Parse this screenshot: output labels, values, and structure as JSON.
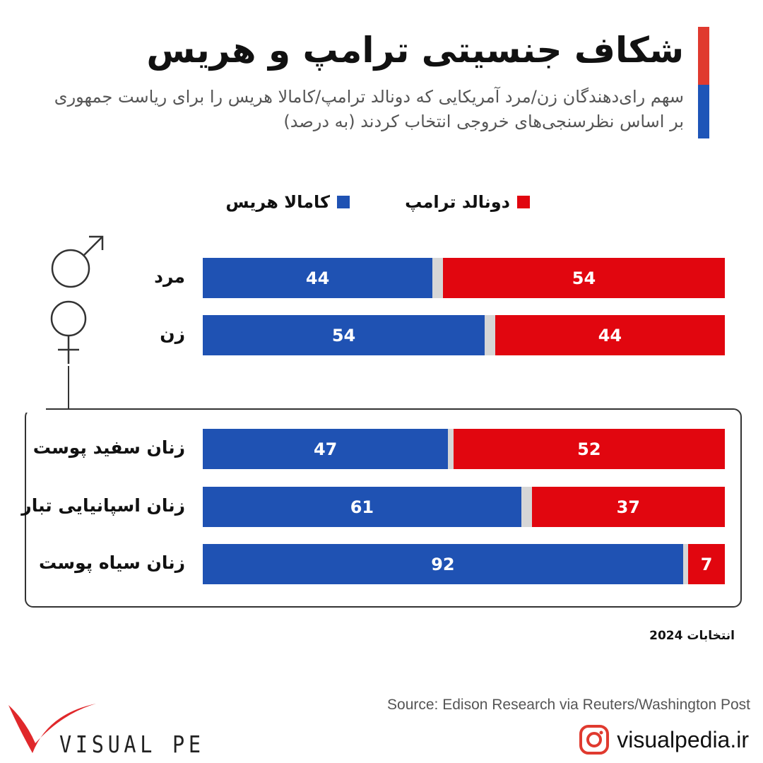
{
  "header": {
    "title": "شکاف جنسیتی ترامپ و هریس",
    "subtitle": "سهم رای‌دهندگان زن/مرد آمریکایی که دونالد ترامپ/کامالا هریس را برای ریاست جمهوری بر اساس نظرسنجی‌های خروجی انتخاب کردند (به درصد)"
  },
  "chart_data": {
    "type": "bar",
    "orientation": "horizontal",
    "stacked": true,
    "title": "شکاف جنسیتی ترامپ و هریس",
    "unit": "percent",
    "xlim": [
      0,
      100
    ],
    "categories": [
      "مرد",
      "زن",
      "زنان سفید پوست",
      "زنان اسپانیایی تبار",
      "زنان سیاه پوست"
    ],
    "series": [
      {
        "name": "کامالا هریس",
        "color": "#1f52b3",
        "values": [
          44,
          54,
          47,
          61,
          92
        ]
      },
      {
        "name": "دونالد ترامپ",
        "color": "#e1060f",
        "values": [
          54,
          44,
          52,
          37,
          7
        ]
      }
    ],
    "legend_placement": "top",
    "grid": false,
    "other_color": "#d6d6d6"
  },
  "footer": {
    "note": "انتخابات 2024",
    "source": "Source: Edison Research via Reuters/Washington Post",
    "website": "visualpedia.ir",
    "logo_text": "VISUAL PEDIA"
  },
  "icons": [
    "male-symbol-icon",
    "female-symbol-icon",
    "instagram-icon"
  ]
}
